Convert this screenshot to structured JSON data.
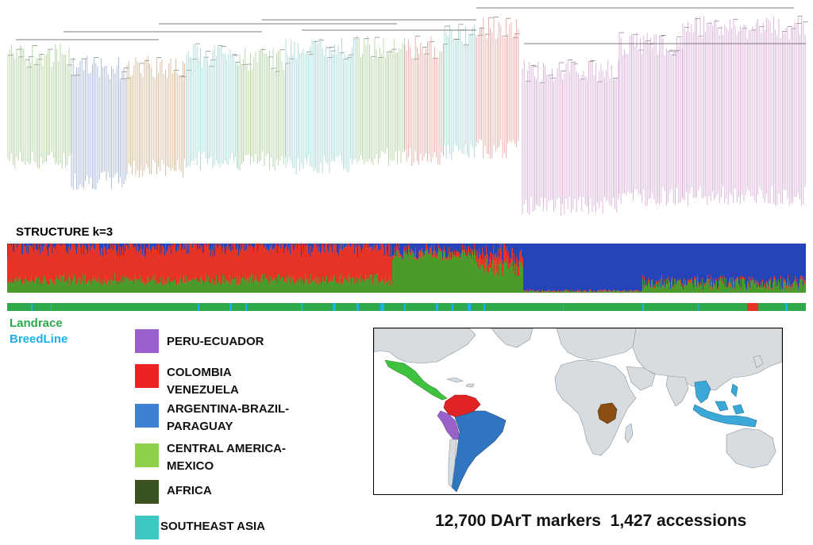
{
  "structure": {
    "title": "STRUCTURE k=3"
  },
  "legend": {
    "landrace": {
      "label": "Landrace",
      "color": "#2ea84a"
    },
    "breedline": {
      "label": "BreedLine",
      "color": "#1ab0ea"
    }
  },
  "regions": [
    {
      "line1": "PERU-ECUADOR",
      "line2": "",
      "color": "#9b5fd0"
    },
    {
      "line1": "COLOMBIA",
      "line2": "VENEZUELA",
      "color": "#ee2222"
    },
    {
      "line1": "ARGENTINA-BRAZIL-",
      "line2": "PARAGUAY",
      "color": "#3c82d0"
    },
    {
      "line1": "CENTRAL AMERICA-",
      "line2": "MEXICO",
      "color": "#8fd04a"
    },
    {
      "line1": "AFRICA",
      "line2": "",
      "color": "#3a5220"
    },
    {
      "line1": "SOUTHEAST ASIA",
      "line2": "",
      "color": "#3cc8c0"
    }
  ],
  "footer": {
    "text": "12,700 DArT markers  1,427 accessions"
  },
  "structure_colors": {
    "cluster1": "#e53326",
    "cluster2": "#4a9a2c",
    "cluster3": "#2544b8"
  }
}
